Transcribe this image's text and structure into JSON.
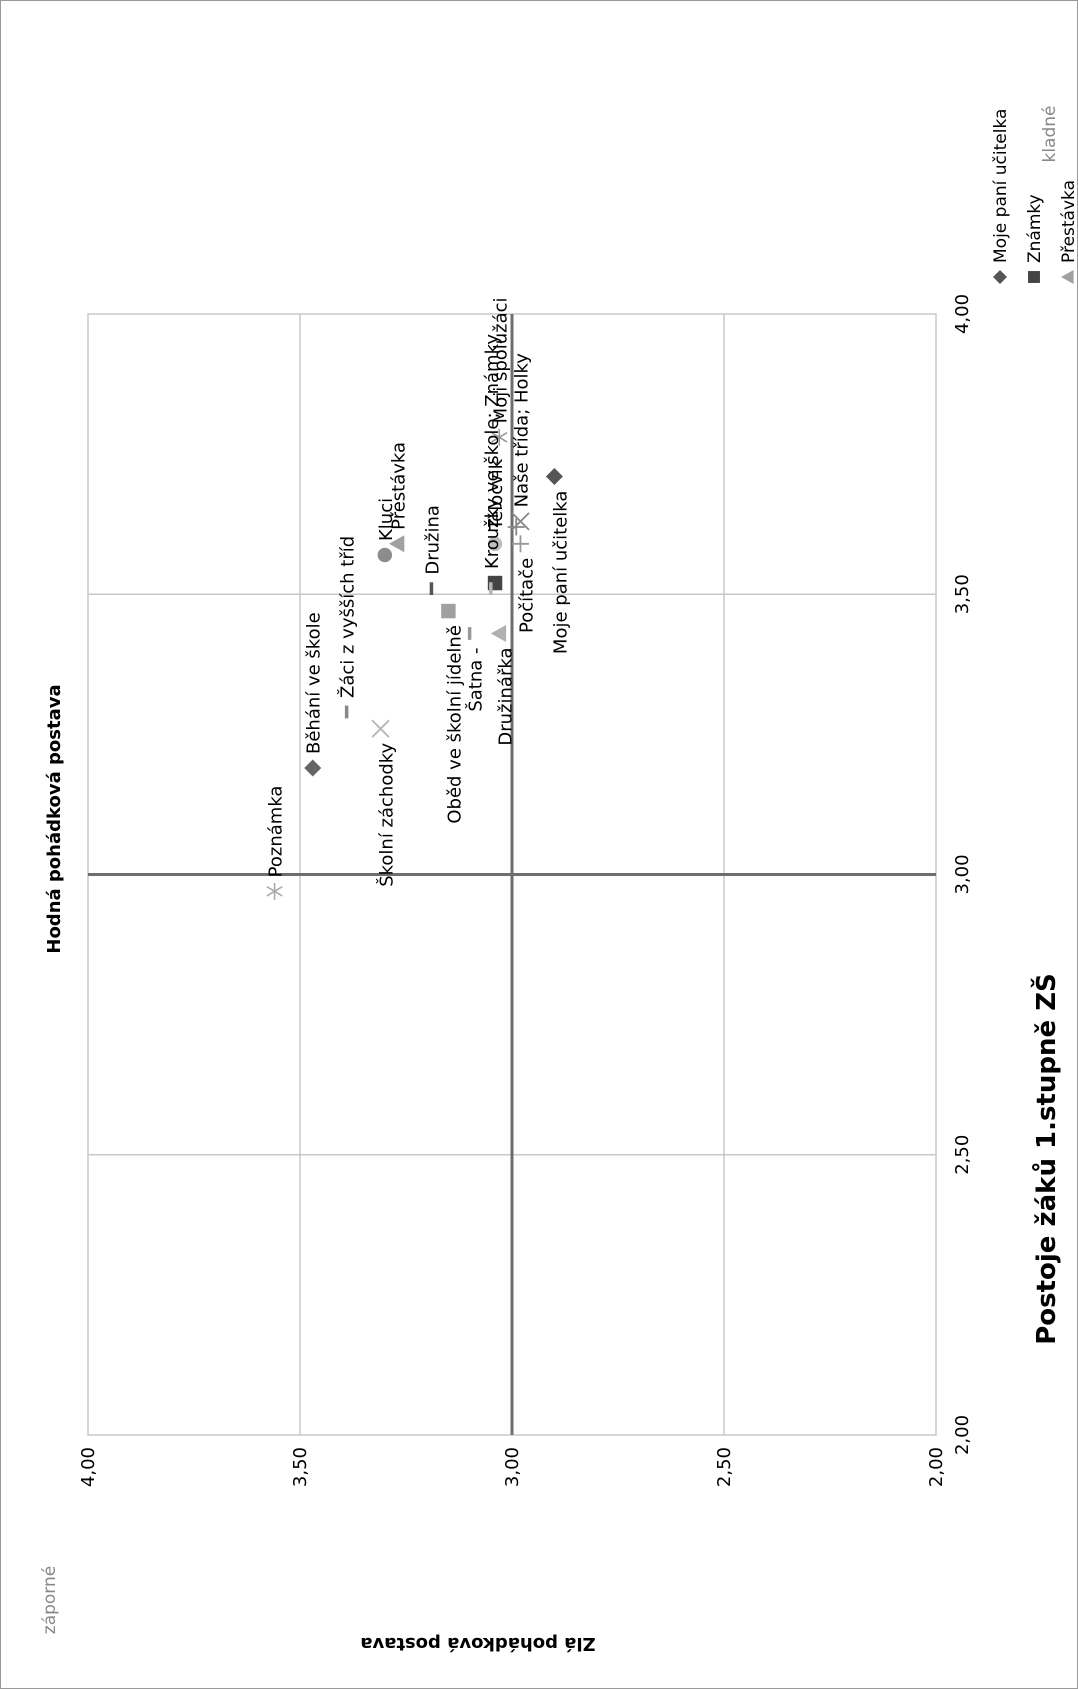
{
  "chart_data": {
    "type": "scatter",
    "title": "Postoje žáků 1.stupně ZŠ",
    "xlabel": "Hodná pohádková postava",
    "ylabel": "Zlá pohádková postava",
    "xlim": [
      2.0,
      4.0
    ],
    "ylim": [
      2.0,
      4.0
    ],
    "x_ticks": [
      "2,00",
      "2,50",
      "3,00",
      "3,50",
      "4,00"
    ],
    "y_ticks": [
      "2,00",
      "2,50",
      "3,00",
      "3,50",
      "4,00"
    ],
    "grid": true,
    "reference_lines": {
      "x": 3.0,
      "y": 3.0
    },
    "legend_position": "right",
    "corner_labels": {
      "positive": "kladné",
      "negative": "záporné"
    },
    "series": [
      {
        "name": "Moje paní učitelka",
        "marker": "diamond",
        "color": "#555555",
        "x": 3.71,
        "y": 2.9
      },
      {
        "name": "Známky",
        "marker": "square",
        "color": "#444444",
        "x": 3.52,
        "y": 3.04
      },
      {
        "name": "Přestávka",
        "marker": "triangle",
        "color": "#a0a0a0",
        "x": 3.59,
        "y": 3.27
      },
      {
        "name": "Naše třída",
        "marker": "x",
        "color": "#888888",
        "x": 3.63,
        "y": 2.98
      },
      {
        "name": "Moji spolužáci",
        "marker": "asterisk",
        "color": "#999999",
        "x": 3.78,
        "y": 3.03
      },
      {
        "name": "Kluci",
        "marker": "circle",
        "color": "#8c8c8c",
        "x": 3.57,
        "y": 3.3
      },
      {
        "name": "Holky",
        "marker": "plus",
        "color": "#888888",
        "x": 3.62,
        "y": 2.99
      },
      {
        "name": "Družina",
        "marker": "dash",
        "color": "#555555",
        "x": 3.51,
        "y": 3.19
      },
      {
        "name": "Žáci z vyšších tříd",
        "marker": "dash",
        "color": "#888888",
        "x": 3.29,
        "y": 3.39
      },
      {
        "name": "Běhání ve škole",
        "marker": "diamond",
        "color": "#666666",
        "x": 3.19,
        "y": 3.47
      },
      {
        "name": "Oběd ve školní jídelně",
        "marker": "square",
        "color": "#a0a0a0",
        "x": 3.47,
        "y": 3.15
      },
      {
        "name": "Družinářka",
        "marker": "triangle",
        "color": "#b0b0b0",
        "x": 3.43,
        "y": 3.03
      },
      {
        "name": "Školní záchodky",
        "marker": "x",
        "color": "#b5b5b5",
        "x": 3.26,
        "y": 3.31
      },
      {
        "name": "Poznámka",
        "marker": "asterisk",
        "color": "#aaaaaa",
        "x": 2.97,
        "y": 3.56
      },
      {
        "name": "Tělocvik",
        "marker": "circle",
        "color": "#bdbdbd",
        "x": 3.59,
        "y": 3.04
      },
      {
        "name": "Počítače",
        "marker": "plus",
        "color": "#999999",
        "x": 3.59,
        "y": 2.98
      },
      {
        "name": "Šatna",
        "marker": "dash",
        "color": "#999999",
        "x": 3.43,
        "y": 3.1
      },
      {
        "name": "Kroužky ve škole",
        "marker": "dash",
        "color": "#b5b5b5",
        "x": 3.51,
        "y": 3.05
      }
    ],
    "point_labels": [
      {
        "text": "Moje paní učitelka",
        "x": 3.71,
        "y": 2.9
      },
      {
        "text": "Počítače",
        "x": 3.59,
        "y": 2.98
      },
      {
        "text": "Naše třída; Holky",
        "x": 3.63,
        "y": 2.98
      },
      {
        "text": "Moji spolužáci",
        "x": 3.78,
        "y": 3.03
      },
      {
        "text": "Tělocvik",
        "x": 3.59,
        "y": 3.04
      },
      {
        "text": "Kroužky ve škole; Známky",
        "x": 3.52,
        "y": 3.05
      },
      {
        "text": "Družinářka",
        "x": 3.43,
        "y": 3.03
      },
      {
        "text": "Šatna -",
        "x": 3.43,
        "y": 3.1
      },
      {
        "text": "Oběd ve školní jídelně",
        "x": 3.47,
        "y": 3.15
      },
      {
        "text": "Družina",
        "x": 3.51,
        "y": 3.19
      },
      {
        "text": "Přestávka",
        "x": 3.59,
        "y": 3.27
      },
      {
        "text": "Kluci",
        "x": 3.57,
        "y": 3.3
      },
      {
        "text": "Školní záchodky",
        "x": 3.26,
        "y": 3.31
      },
      {
        "text": "Žáci z vyšších tříd",
        "x": 3.29,
        "y": 3.39
      },
      {
        "text": "Běhání ve škole",
        "x": 3.19,
        "y": 3.47
      },
      {
        "text": "Poznámka",
        "x": 2.97,
        "y": 3.56
      }
    ]
  }
}
